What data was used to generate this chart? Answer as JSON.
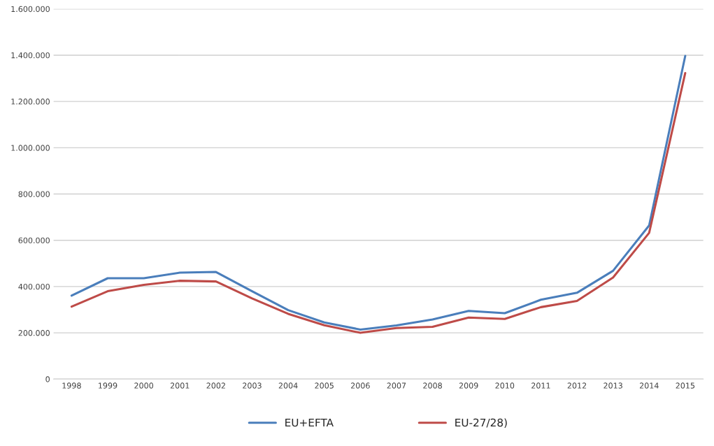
{
  "chart_data": {
    "type": "line",
    "categories": [
      "1998",
      "1999",
      "2000",
      "2001",
      "2002",
      "2003",
      "2004",
      "2005",
      "2006",
      "2007",
      "2008",
      "2009",
      "2010",
      "2011",
      "2012",
      "2013",
      "2014",
      "2015"
    ],
    "series": [
      {
        "name": "EU+EFTA",
        "color": "#4a7ebb",
        "values": [
          361000,
          436000,
          436000,
          460000,
          463000,
          380000,
          298000,
          245000,
          214000,
          232000,
          258000,
          295000,
          285000,
          343000,
          373000,
          468000,
          664000,
          1397000
        ]
      },
      {
        "name": "EU-27/28)",
        "color": "#be4b48",
        "values": [
          313000,
          380000,
          407000,
          425000,
          422000,
          349000,
          282000,
          233000,
          200000,
          221000,
          226000,
          266000,
          260000,
          311000,
          338000,
          439000,
          632000,
          1323000
        ]
      }
    ],
    "ylim": [
      0,
      1600000
    ],
    "yticks": [
      {
        "value": 0,
        "label": "0"
      },
      {
        "value": 200000,
        "label": "200.000"
      },
      {
        "value": 400000,
        "label": "400.000"
      },
      {
        "value": 600000,
        "label": "600.000"
      },
      {
        "value": 800000,
        "label": "800.000"
      },
      {
        "value": 1000000,
        "label": "1.000.000"
      },
      {
        "value": 1200000,
        "label": "1.200.000"
      },
      {
        "value": 1400000,
        "label": "1.400.000"
      },
      {
        "value": 1600000,
        "label": "1.600.000"
      }
    ],
    "grid": "y",
    "legend": "bottom",
    "marker": "none",
    "line_style": "solid"
  }
}
